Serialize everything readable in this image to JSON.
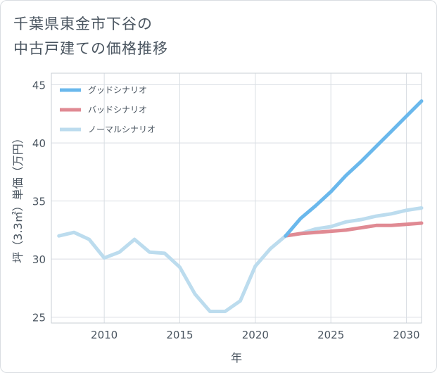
{
  "title": {
    "line1": "千葉県東金市下谷の",
    "line2": "中古戸建ての価格推移"
  },
  "chart_data": {
    "type": "line",
    "xlabel": "年",
    "ylabel": "坪（3.3㎡）単価（万円）",
    "xlim": [
      2006.5,
      2031
    ],
    "ylim": [
      24.5,
      46
    ],
    "xticks": [
      2010,
      2015,
      2020,
      2025,
      2030
    ],
    "yticks": [
      25,
      30,
      35,
      40,
      45
    ],
    "grid": true,
    "legend_position": "top-left",
    "series": [
      {
        "name": "グッドシナリオ",
        "color": "#6ab8ec",
        "x": [
          2022,
          2023,
          2024,
          2025,
          2026,
          2027,
          2028,
          2029,
          2030,
          2031
        ],
        "y": [
          32.0,
          33.5,
          34.6,
          35.8,
          37.2,
          38.4,
          39.7,
          41.0,
          42.3,
          43.6
        ]
      },
      {
        "name": "バッドシナリオ",
        "color": "#e08a93",
        "x": [
          2022,
          2023,
          2024,
          2025,
          2026,
          2027,
          2028,
          2029,
          2030,
          2031
        ],
        "y": [
          32.0,
          32.2,
          32.3,
          32.4,
          32.5,
          32.7,
          32.9,
          32.9,
          33.0,
          33.1
        ]
      },
      {
        "name": "ノーマルシナリオ",
        "color": "#bcdcee",
        "x": [
          2007,
          2008,
          2009,
          2010,
          2011,
          2012,
          2013,
          2014,
          2015,
          2016,
          2017,
          2018,
          2019,
          2020,
          2021,
          2022,
          2023,
          2024,
          2025,
          2026,
          2027,
          2028,
          2029,
          2030,
          2031
        ],
        "y": [
          32.0,
          32.3,
          31.7,
          30.1,
          30.6,
          31.7,
          30.6,
          30.5,
          29.3,
          27.0,
          25.5,
          25.5,
          26.4,
          29.4,
          30.9,
          32.0,
          32.2,
          32.6,
          32.8,
          33.2,
          33.4,
          33.7,
          33.9,
          34.2,
          34.4
        ]
      }
    ]
  }
}
